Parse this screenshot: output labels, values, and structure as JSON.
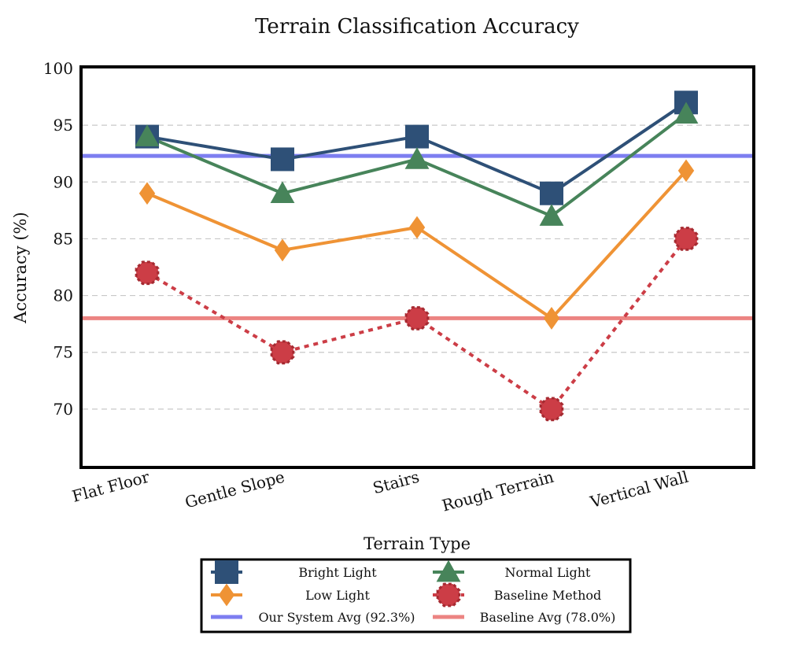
{
  "chart_data": {
    "type": "line",
    "title": "Terrain Classification Accuracy",
    "xlabel": "Terrain Type",
    "ylabel": "Accuracy (%)",
    "categories": [
      "Flat Floor",
      "Gentle Slope",
      "Stairs",
      "Rough Terrain",
      "Vertical Wall"
    ],
    "ylim": [
      65,
      100
    ],
    "yticks": [
      70,
      75,
      80,
      85,
      90,
      95,
      100
    ],
    "grid": "horizontal-dashed",
    "legend_position": "bottom-center",
    "series": [
      {
        "name": "Bright Light",
        "values": [
          94,
          92,
          94,
          89,
          97
        ],
        "color": "#2e5077",
        "marker": "square",
        "dash": "solid"
      },
      {
        "name": "Normal Light",
        "values": [
          94,
          89,
          92,
          87,
          96
        ],
        "color": "#47845a",
        "marker": "triangle",
        "dash": "solid"
      },
      {
        "name": "Low Light",
        "values": [
          89,
          84,
          86,
          78,
          91
        ],
        "color": "#ef9335",
        "marker": "diamond",
        "dash": "solid"
      },
      {
        "name": "Baseline Method",
        "values": [
          82,
          75,
          78,
          70,
          85
        ],
        "color": "#cc3d46",
        "marker": "octagon",
        "dash": "dotted"
      }
    ],
    "reference_lines": [
      {
        "name": "Our System Avg (92.3%)",
        "value": 92.3,
        "color": "#7d7ef0"
      },
      {
        "name": "Baseline Avg (78.0%)",
        "value": 78.0,
        "color": "#ec8482"
      }
    ]
  }
}
